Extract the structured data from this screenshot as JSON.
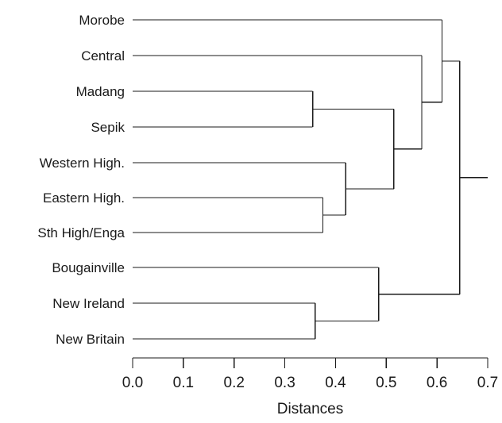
{
  "axis": {
    "title": "Distances",
    "range": [
      0.0,
      0.7
    ],
    "ticks": [
      0.0,
      0.1,
      0.2,
      0.3,
      0.4,
      0.5,
      0.6,
      0.7
    ],
    "tick_labels": [
      "0.0",
      "0.1",
      "0.2",
      "0.3",
      "0.4",
      "0.5",
      "0.6",
      "0.7"
    ]
  },
  "leaves": [
    "Morobe",
    "Central",
    "Madang",
    "Sepik",
    "Western High.",
    "Eastern High.",
    "Sth High/Enga",
    "Bougainville",
    "New Ireland",
    "New Britain"
  ],
  "merges": [
    {
      "id": "m1",
      "left": "L5",
      "right": "L6",
      "distance": 0.375
    },
    {
      "id": "m2",
      "left": "L2",
      "right": "L3",
      "distance": 0.355
    },
    {
      "id": "m3",
      "left": "L8",
      "right": "L9",
      "distance": 0.36
    },
    {
      "id": "m4",
      "left": "L4",
      "right": "m1",
      "distance": 0.42
    },
    {
      "id": "m5",
      "left": "m2",
      "right": "m4",
      "distance": 0.515
    },
    {
      "id": "m6",
      "left": "L7",
      "right": "m3",
      "distance": 0.485
    },
    {
      "id": "m7",
      "left": "L1",
      "right": "m5",
      "distance": 0.57
    },
    {
      "id": "m8",
      "left": "L0",
      "right": "m7",
      "distance": 0.61
    },
    {
      "id": "m9",
      "left": "m8",
      "right": "m6",
      "distance": 0.645
    }
  ],
  "root_distance": 0.7
}
